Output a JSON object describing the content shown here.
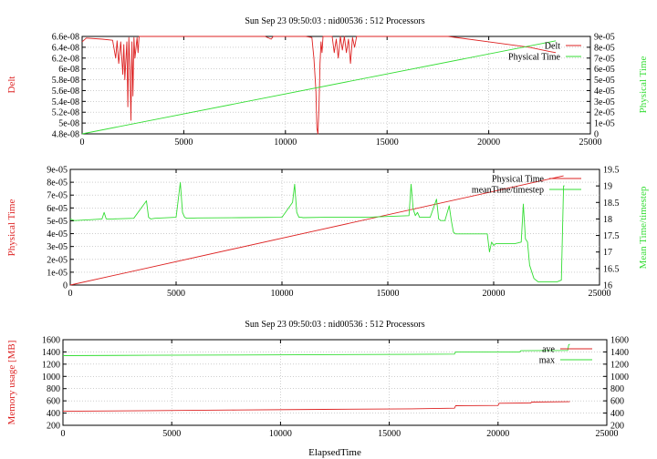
{
  "colors": {
    "red": "#dd2222",
    "green": "#33dd33"
  },
  "chart_data": [
    {
      "type": "line",
      "title": "Sun Sep 23 09:50:03 : nid00536 : 512 Processors",
      "ylabel_left": "Delt",
      "ylabel_right": "Physical Time",
      "xlim": [
        0,
        25000
      ],
      "ylim_left": [
        4.8e-08,
        6.6e-08
      ],
      "ylim_right": [
        0,
        9e-05
      ],
      "xticks": [
        "0",
        "5000",
        "10000",
        "15000",
        "20000",
        "25000"
      ],
      "yticks_left": [
        "4.8e-08",
        "5e-08",
        "5.2e-08",
        "5.4e-08",
        "5.6e-08",
        "5.8e-08",
        "6e-08",
        "6.2e-08",
        "6.4e-08",
        "6.6e-08"
      ],
      "yticks_right": [
        "0",
        "1e-05",
        "2e-05",
        "3e-05",
        "4e-05",
        "5e-05",
        "6e-05",
        "7e-05",
        "8e-05",
        "9e-05"
      ],
      "legend": "top-right",
      "grid": true,
      "series": [
        {
          "name": "Delt",
          "axis": "left",
          "color": "#dd2222",
          "x": [
            0,
            200,
            1000,
            1500,
            1650,
            1720,
            1800,
            1900,
            2000,
            2050,
            2100,
            2200,
            2250,
            2300,
            2350,
            2400,
            2450,
            2500,
            2550,
            2600,
            2700,
            2750,
            2800,
            3000,
            5000,
            9000,
            9300,
            9400,
            9500,
            11000,
            11300,
            11400,
            11500,
            11550,
            11600,
            11650,
            11700,
            11750,
            11800,
            11850,
            12000,
            12300,
            12400,
            12500,
            12600,
            12700,
            12800,
            12900,
            13000,
            13100,
            13200,
            13300,
            13400,
            13500,
            17000,
            18000,
            20000,
            21000,
            22000,
            23000,
            23300
          ],
          "y": [
            6.5e-08,
            6.57e-08,
            6.55e-08,
            6.53e-08,
            6.2e-08,
            6.52e-08,
            6.1e-08,
            6.5e-08,
            5.9e-08,
            6.45e-08,
            5.8e-08,
            6.5e-08,
            5.3e-08,
            6.58e-08,
            6e-08,
            5.05e-08,
            6.5e-08,
            5.5e-08,
            6.58e-08,
            6.2e-08,
            6.58e-08,
            6.3e-08,
            6.6e-08,
            6.6e-08,
            6.6e-08,
            6.6e-08,
            6.55e-08,
            6.6e-08,
            6.6e-08,
            6.6e-08,
            6.58e-08,
            6.2e-08,
            5.6e-08,
            4.9e-08,
            4.8e-08,
            5.3e-08,
            6.1e-08,
            6.5e-08,
            6.3e-08,
            6.6e-08,
            6.6e-08,
            6.6e-08,
            6.3e-08,
            6.55e-08,
            6.2e-08,
            6.6e-08,
            6.35e-08,
            6.6e-08,
            6.3e-08,
            6.55e-08,
            6.1e-08,
            6.58e-08,
            6.4e-08,
            6.6e-08,
            6.6e-08,
            6.6e-08,
            6.5e-08,
            6.45e-08,
            6.4e-08,
            6.32e-08,
            6.3e-08
          ]
        },
        {
          "name": "Physical Time",
          "axis": "right",
          "color": "#33dd33",
          "x": [
            0,
            23300
          ],
          "y": [
            0,
            8.6e-05
          ]
        }
      ]
    },
    {
      "type": "line",
      "title": "",
      "ylabel_left": "Physical Time",
      "ylabel_right": "Mean Time/timestep",
      "xlim": [
        0,
        25000
      ],
      "ylim_left": [
        0,
        9e-05
      ],
      "ylim_right": [
        16,
        19.5
      ],
      "xticks": [
        "0",
        "5000",
        "10000",
        "15000",
        "20000",
        "25000"
      ],
      "yticks_left": [
        "0",
        "1e-05",
        "2e-05",
        "3e-05",
        "4e-05",
        "5e-05",
        "6e-05",
        "7e-05",
        "8e-05",
        "9e-05"
      ],
      "yticks_right": [
        "16",
        "16.5",
        "17",
        "17.5",
        "18",
        "18.5",
        "19",
        "19.5"
      ],
      "legend": "top-right",
      "grid": true,
      "series": [
        {
          "name": "Physical Time",
          "axis": "left",
          "color": "#dd2222",
          "x": [
            0,
            23300
          ],
          "y": [
            0,
            8.5e-05
          ]
        },
        {
          "name": "meanTime/timestep",
          "axis": "right",
          "color": "#33dd33",
          "x": [
            0,
            200,
            1000,
            1500,
            1600,
            1700,
            2000,
            3000,
            3600,
            3700,
            3800,
            4000,
            5000,
            5200,
            5300,
            5400,
            5500,
            6000,
            8000,
            10000,
            10500,
            10600,
            10700,
            10800,
            10900,
            11000,
            12000,
            14000,
            16000,
            16100,
            16200,
            16300,
            16400,
            16500,
            16700,
            17000,
            17300,
            17400,
            17500,
            17700,
            17900,
            18000,
            18100,
            18200,
            18500,
            19500,
            19700,
            19800,
            19900,
            20000,
            20100,
            20500,
            21000,
            21300,
            21400,
            21500,
            21600,
            21700,
            21900,
            22000,
            22100,
            22500,
            23000,
            23200,
            23300,
            23350
          ],
          "y": [
            18.0,
            17.95,
            17.98,
            18.0,
            18.2,
            18.0,
            18.0,
            18.02,
            18.55,
            18.05,
            18.0,
            18.02,
            18.05,
            19.1,
            18.2,
            18.05,
            18.02,
            18.03,
            18.04,
            18.05,
            18.5,
            19.05,
            18.2,
            18.05,
            18.05,
            18.04,
            18.05,
            18.05,
            18.1,
            19.05,
            18.3,
            18.1,
            18.2,
            18.05,
            18.05,
            18.05,
            18.6,
            18.0,
            17.95,
            17.95,
            18.4,
            17.95,
            17.6,
            17.55,
            17.55,
            17.55,
            17.55,
            17.0,
            17.3,
            17.2,
            17.25,
            17.25,
            17.25,
            17.3,
            18.45,
            17.4,
            17.3,
            16.6,
            16.2,
            16.15,
            16.1,
            16.1,
            16.1,
            16.15,
            19.0,
            19.0
          ]
        }
      ]
    },
    {
      "type": "line",
      "title": "Sun Sep 23 09:50:03 : nid00536 : 512 Processors",
      "xlabel": "ElapsedTime",
      "ylabel_left": "Memory usage [MB]",
      "ylabel_right": "",
      "xlim": [
        0,
        25000
      ],
      "ylim_left": [
        200,
        1600
      ],
      "ylim_right": [
        200,
        1600
      ],
      "xticks": [
        "0",
        "5000",
        "10000",
        "15000",
        "20000",
        "25000"
      ],
      "yticks_left": [
        "200",
        "400",
        "600",
        "800",
        "1000",
        "1200",
        "1400",
        "1600"
      ],
      "yticks_right": [
        "200",
        "400",
        "600",
        "800",
        "1000",
        "1200",
        "1400",
        "1600"
      ],
      "legend": "top-right",
      "grid": true,
      "series": [
        {
          "name": "ave",
          "axis": "left",
          "color": "#dd2222",
          "x": [
            0,
            4000,
            8000,
            12000,
            16000,
            18000,
            18050,
            20000,
            20050,
            21500,
            21550,
            23300
          ],
          "y": [
            430,
            440,
            450,
            460,
            470,
            480,
            520,
            525,
            560,
            565,
            580,
            585
          ]
        },
        {
          "name": "max",
          "axis": "left",
          "color": "#33dd33",
          "x": [
            0,
            4000,
            8000,
            12000,
            16000,
            18000,
            18050,
            21000,
            21050,
            23200,
            23250,
            23300
          ],
          "y": [
            1340,
            1345,
            1350,
            1355,
            1360,
            1365,
            1400,
            1400,
            1420,
            1425,
            1520,
            1525
          ]
        }
      ]
    }
  ]
}
